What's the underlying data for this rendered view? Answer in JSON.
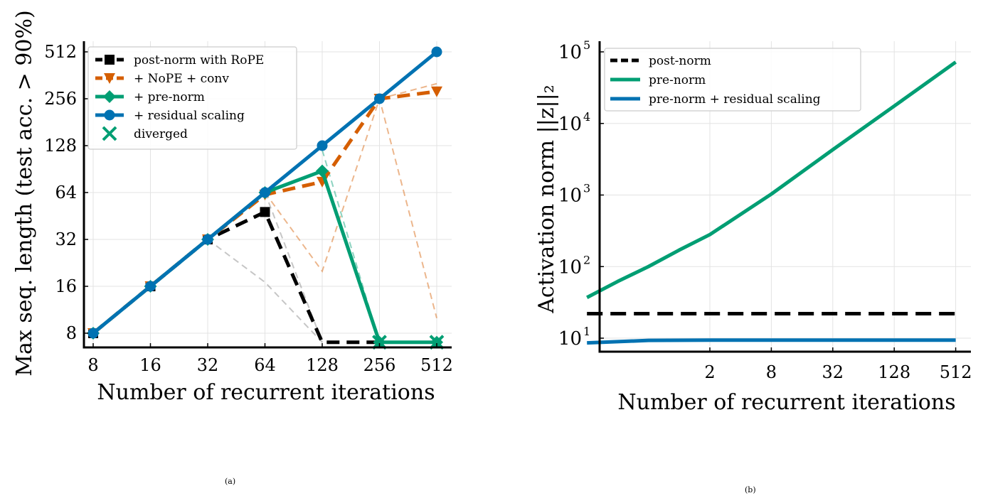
{
  "panels": [
    {
      "caption": "(a)",
      "chart_data": {
        "type": "line",
        "xlabel": "Number of recurrent iterations",
        "ylabel": "Max seq. length (test acc. > 90%)",
        "x_scale": "log2",
        "y_scale": "log2",
        "x_ticks": [
          "8",
          "16",
          "32",
          "64",
          "128",
          "256",
          "512"
        ],
        "y_ticks": [
          "8",
          "16",
          "32",
          "64",
          "128",
          "256",
          "512"
        ],
        "grid": true,
        "legend_position": "top-left",
        "series": [
          {
            "name": "post-norm with RoPE",
            "color": "#000000",
            "style": "dashed",
            "marker": "square",
            "x": [
              8,
              16,
              32,
              64,
              128,
              256
            ],
            "y": [
              8,
              16,
              32,
              48,
              7,
              7
            ]
          },
          {
            "name": "+ NoPE + conv",
            "color": "#d55e00",
            "style": "dashed",
            "marker": "triangle-down",
            "x": [
              8,
              16,
              32,
              64,
              128,
              256,
              512
            ],
            "y": [
              8,
              16,
              32,
              62,
              75,
              256,
              285
            ]
          },
          {
            "name": "+ pre-norm",
            "color": "#009e73",
            "style": "solid",
            "marker": "diamond",
            "x": [
              8,
              16,
              32,
              64,
              128,
              256,
              512
            ],
            "y": [
              8,
              16,
              32,
              64,
              88,
              7,
              7
            ]
          },
          {
            "name": "+ residual scaling",
            "color": "#0072b2",
            "style": "solid",
            "marker": "circle",
            "x": [
              8,
              16,
              32,
              64,
              128,
              256,
              512
            ],
            "y": [
              8,
              16,
              32,
              64,
              128,
              256,
              512
            ]
          },
          {
            "name": "diverged",
            "color": "#009e73",
            "style": "none",
            "marker": "x",
            "x": [
              256,
              512
            ],
            "y": [
              7,
              7
            ]
          }
        ],
        "faint_runs": [
          {
            "color": "#808080",
            "x": [
              32,
              64,
              128
            ],
            "y": [
              32,
              17,
              7
            ]
          },
          {
            "color": "#808080",
            "x": [
              64,
              128
            ],
            "y": [
              64,
              7
            ]
          },
          {
            "color": "#d55e00",
            "x": [
              64,
              128,
              256,
              512
            ],
            "y": [
              64,
              20,
              256,
              10
            ]
          },
          {
            "color": "#d55e00",
            "x": [
              256,
              512
            ],
            "y": [
              256,
              320
            ]
          },
          {
            "color": "#009e73",
            "x": [
              128,
              256
            ],
            "y": [
              120,
              7
            ]
          }
        ]
      }
    },
    {
      "caption": "(b)",
      "chart_data": {
        "type": "line",
        "xlabel": "Number of recurrent iterations",
        "ylabel": "Activation norm ||z||₂",
        "x_scale": "log2",
        "y_scale": "log10",
        "x_ticks": [
          "2",
          "8",
          "32",
          "128",
          "512"
        ],
        "y_ticks": [
          "10",
          "10",
          "10",
          "10",
          "10"
        ],
        "y_tick_exponents": [
          "1",
          "2",
          "3",
          "4",
          "5"
        ],
        "ylim": [
          7,
          100000
        ],
        "grid": true,
        "legend_position": "top-left",
        "series": [
          {
            "name": "post-norm",
            "color": "#000000",
            "style": "dashed",
            "x": [
              0.125,
              512
            ],
            "y": [
              22,
              22
            ]
          },
          {
            "name": "pre-norm",
            "color": "#009e73",
            "style": "solid",
            "x": [
              0.125,
              0.25,
              0.5,
              1,
              2,
              8,
              32,
              128,
              512
            ],
            "y": [
              37,
              62,
              100,
              170,
              280,
              1030,
              4300,
              17500,
              72000
            ]
          },
          {
            "name": "pre-norm + residual scaling",
            "color": "#0072b2",
            "style": "solid",
            "x": [
              0.125,
              0.5,
              2,
              512
            ],
            "y": [
              8.6,
              9.3,
              9.4,
              9.4
            ]
          }
        ]
      }
    }
  ]
}
